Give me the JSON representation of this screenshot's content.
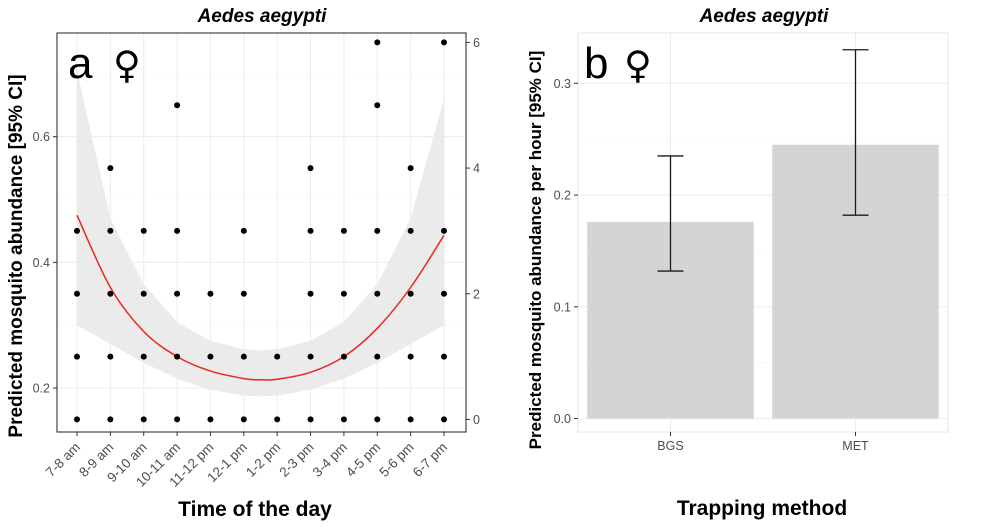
{
  "panel_a": {
    "letter": "a",
    "sex_symbol": "♀",
    "title": "Aedes aegypti",
    "ylabel": "Predicted mosquito abundance [95% CI]",
    "xlabel": "Time of the day"
  },
  "panel_b": {
    "letter": "b",
    "sex_symbol": "♀",
    "title": "Aedes aegypti",
    "ylabel": "Predicted mosquito abundance per hour [95% CI]",
    "xlabel": "Trapping method"
  },
  "colors": {
    "curve": "#e8291c",
    "ribbon": "#ebebeb",
    "bar": "#d4d4d4",
    "point": "#000000",
    "errorbar": "#1a1a1a"
  },
  "chart_data": [
    {
      "type": "scatter",
      "title": "Aedes aegypti",
      "xlabel": "Time of the day",
      "ylabel": "Predicted mosquito abundance [95% CI]",
      "y2label": "",
      "categories": [
        "7-8 am",
        "8-9 am",
        "9-10 am",
        "10-11 am",
        "11-12 pm",
        "12-1 pm",
        "1-2 pm",
        "2-3 pm",
        "3-4 pm",
        "4-5 pm",
        "5-6 pm",
        "6-7 pm"
      ],
      "ylim": [
        0.13,
        0.765
      ],
      "yticks": [
        0.2,
        0.4,
        0.6
      ],
      "ytick_labels": [
        "0.2",
        "0.4",
        "0.6"
      ],
      "y2lim": [
        -0.2,
        6.15
      ],
      "y2ticks": [
        0,
        2,
        4,
        6
      ],
      "y2tick_labels": [
        "0",
        "2",
        "4",
        "6"
      ],
      "observed_counts": [
        [
          0,
          1,
          2,
          3
        ],
        [
          0,
          1,
          2,
          3,
          4
        ],
        [
          0,
          1,
          2,
          3
        ],
        [
          0,
          1,
          2,
          3,
          5
        ],
        [
          0,
          1,
          2
        ],
        [
          0,
          1,
          2,
          3
        ],
        [
          0,
          1
        ],
        [
          0,
          1,
          2,
          3,
          4
        ],
        [
          0,
          1,
          2,
          3
        ],
        [
          0,
          1,
          2,
          3,
          5,
          6
        ],
        [
          0,
          1,
          2,
          3,
          4
        ],
        [
          0,
          1,
          2,
          3,
          6
        ]
      ],
      "fitted": {
        "x": [
          0,
          1,
          2,
          3,
          4,
          5,
          5.5,
          6,
          7,
          8,
          9,
          10,
          11
        ],
        "mean": [
          0.475,
          0.36,
          0.29,
          0.25,
          0.227,
          0.215,
          0.213,
          0.214,
          0.225,
          0.25,
          0.295,
          0.36,
          0.443
        ],
        "lower": [
          0.3,
          0.27,
          0.24,
          0.215,
          0.197,
          0.188,
          0.187,
          0.188,
          0.197,
          0.215,
          0.24,
          0.27,
          0.3
        ],
        "upper": [
          0.705,
          0.47,
          0.365,
          0.305,
          0.275,
          0.262,
          0.26,
          0.262,
          0.275,
          0.305,
          0.365,
          0.47,
          0.66
        ]
      }
    },
    {
      "type": "bar",
      "title": "Aedes aegypti",
      "xlabel": "Trapping method",
      "ylabel": "Predicted mosquito abundance per hour [95% CI]",
      "categories": [
        "BGS",
        "MET"
      ],
      "values": [
        0.176,
        0.245
      ],
      "ci_lower": [
        0.132,
        0.182
      ],
      "ci_upper": [
        0.235,
        0.33
      ],
      "ylim": [
        -0.012,
        0.345
      ],
      "yticks": [
        0.0,
        0.1,
        0.2,
        0.3
      ],
      "ytick_labels": [
        "0.0",
        "0.1",
        "0.2",
        "0.3"
      ]
    }
  ]
}
